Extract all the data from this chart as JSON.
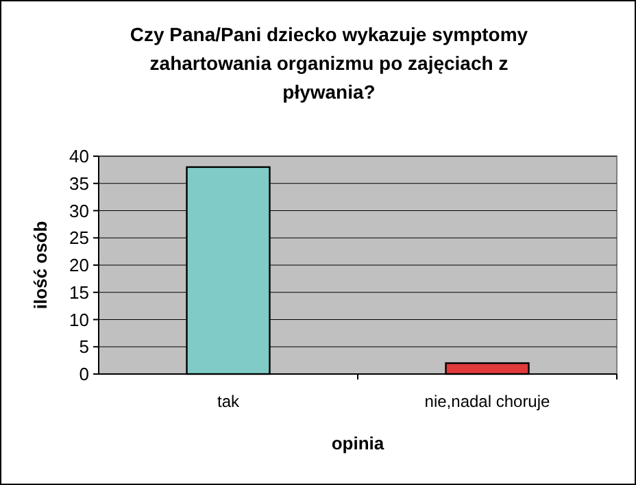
{
  "chart_data": {
    "type": "bar",
    "title": "Czy Pana/Pani dziecko wykazuje symptomy zahartowania organizmu po zajęciach z pływania?",
    "xlabel": "opinia",
    "ylabel": "ilość osób",
    "categories": [
      "tak",
      "nie,nadal choruje"
    ],
    "values": [
      38,
      2
    ],
    "colors": [
      "#80cbc8",
      "#e03a3a"
    ],
    "ylim": [
      0,
      40
    ],
    "yticks": [
      0,
      5,
      10,
      15,
      20,
      25,
      30,
      35,
      40
    ],
    "grid": "y"
  }
}
